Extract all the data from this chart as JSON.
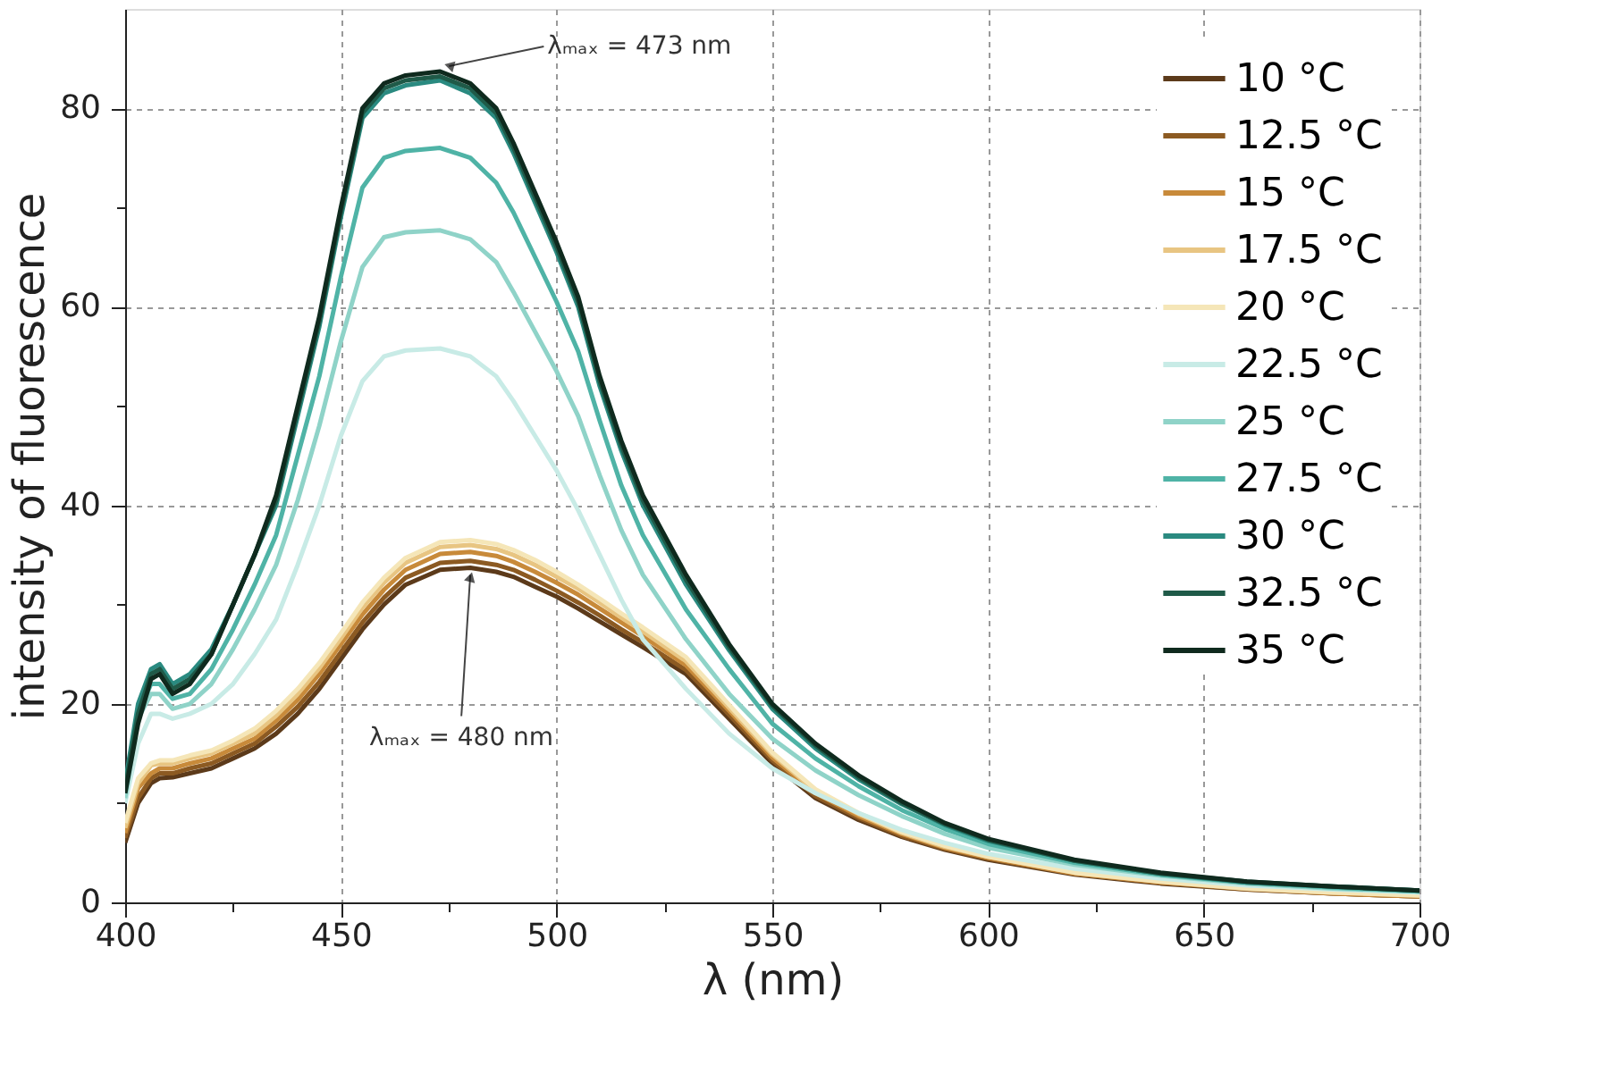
{
  "chart_data": {
    "type": "line",
    "xlabel": "λ (nm)",
    "ylabel": "intensity of fluorescence",
    "x": [
      400,
      403,
      406,
      408,
      411,
      415,
      420,
      425,
      430,
      435,
      440,
      445,
      450,
      455,
      460,
      465,
      473,
      480,
      486,
      490,
      495,
      500,
      505,
      510,
      515,
      520,
      530,
      540,
      550,
      560,
      570,
      580,
      590,
      600,
      620,
      640,
      660,
      680,
      700
    ],
    "xlim": [
      400,
      700
    ],
    "xticks": [
      400,
      {
        "value": 425,
        "label": null
      },
      450,
      {
        "value": 475,
        "label": null
      },
      500,
      {
        "value": 525,
        "label": null
      },
      550,
      {
        "value": 575,
        "label": null
      },
      600,
      {
        "value": 625,
        "label": null
      },
      650,
      {
        "value": 675,
        "label": null
      },
      700
    ],
    "ylim": [
      0,
      90
    ],
    "yticks": [
      0,
      {
        "value": 10,
        "label": null
      },
      20,
      {
        "value": 30,
        "label": null
      },
      40,
      {
        "value": 50,
        "label": null
      },
      60,
      {
        "value": 70,
        "label": null
      },
      80
    ],
    "grid": true,
    "legend": "top right",
    "line_style": "solid",
    "marker": "none",
    "annotations": [
      {
        "text": "λₘₐₓ = 473 nm",
        "x": 473,
        "y": 83.7
      },
      {
        "text": "λₘₐₓ = 480 nm",
        "x": 480,
        "y": 33.7
      }
    ],
    "series": [
      {
        "name": "10 °C",
        "color": "#5c3a1a",
        "values": [
          6,
          10,
          12,
          12.5,
          12.6,
          13,
          13.5,
          14.5,
          15.5,
          17,
          19,
          21.5,
          24.5,
          27.5,
          30,
          32,
          33.5,
          33.7,
          33.3,
          32.8,
          31.8,
          30.8,
          29.6,
          28.3,
          27,
          25.7,
          23,
          18.5,
          14,
          10.5,
          8.3,
          6.6,
          5.3,
          4.3,
          2.8,
          1.9,
          1.3,
          0.9,
          0.6
        ]
      },
      {
        "name": "12.5 °C",
        "color": "#8c5a22",
        "values": [
          6.5,
          10.5,
          12.5,
          13,
          13,
          13.5,
          14,
          15,
          16,
          17.7,
          19.7,
          22.2,
          25.2,
          28.2,
          30.7,
          32.7,
          34.2,
          34.4,
          34,
          33.5,
          32.5,
          31.4,
          30.2,
          28.9,
          27.5,
          26.2,
          23.4,
          18.9,
          14.3,
          10.7,
          8.5,
          6.7,
          5.4,
          4.4,
          2.9,
          2,
          1.3,
          0.9,
          0.6
        ]
      },
      {
        "name": "15 °C",
        "color": "#c88a3a",
        "values": [
          7,
          11.5,
          13,
          13.5,
          13.5,
          14,
          14.5,
          15.5,
          16.5,
          18.3,
          20.4,
          23,
          26,
          29,
          31.5,
          33.5,
          35.1,
          35.3,
          34.9,
          34.3,
          33.3,
          32.2,
          31,
          29.6,
          28.2,
          26.8,
          23.9,
          19.3,
          14.6,
          11,
          8.7,
          6.9,
          5.5,
          4.5,
          2.9,
          2,
          1.4,
          0.9,
          0.6
        ]
      },
      {
        "name": "17.5 °C",
        "color": "#e8c582",
        "values": [
          7.5,
          12,
          13.8,
          14,
          14,
          14.5,
          15,
          16,
          17,
          18.8,
          21,
          23.6,
          26.6,
          29.7,
          32.2,
          34.2,
          35.8,
          36,
          35.6,
          35,
          34,
          32.8,
          31.6,
          30.2,
          28.7,
          27.3,
          24.3,
          19.6,
          14.9,
          11.2,
          8.9,
          7,
          5.6,
          4.6,
          3,
          2.1,
          1.4,
          1,
          0.7
        ]
      },
      {
        "name": "20 °C",
        "color": "#f5e6b8",
        "values": [
          8,
          12.5,
          14,
          14.3,
          14.3,
          14.8,
          15.3,
          16.3,
          17.5,
          19.3,
          21.5,
          24.1,
          27.1,
          30.2,
          32.7,
          34.7,
          36.3,
          36.5,
          36.1,
          35.5,
          34.5,
          33.3,
          32,
          30.6,
          29.1,
          27.7,
          24.7,
          19.9,
          15.1,
          11.4,
          9,
          7.1,
          5.7,
          4.6,
          3,
          2.1,
          1.4,
          1,
          0.7
        ]
      },
      {
        "name": "22.5 °C",
        "color": "#c8ebe6",
        "values": [
          10,
          16,
          19,
          19,
          18.5,
          19,
          20,
          22,
          25,
          28.5,
          34,
          40,
          47,
          52.5,
          55,
          55.6,
          55.8,
          55,
          53,
          50.5,
          47,
          43.5,
          39.5,
          35,
          30.5,
          26.5,
          21.5,
          17,
          13.5,
          11,
          9,
          7.3,
          6,
          4.9,
          3.4,
          2.4,
          1.7,
          1.3,
          1
        ]
      },
      {
        "name": "25 °C",
        "color": "#8fd3c8",
        "values": [
          10.5,
          18.5,
          21,
          21,
          19.5,
          20,
          22,
          25.5,
          29.5,
          34,
          40.5,
          48,
          56.5,
          64,
          67,
          67.5,
          67.7,
          66.8,
          64.5,
          61.5,
          57.5,
          53.5,
          49,
          43,
          37.5,
          33,
          26.5,
          21,
          16.5,
          13.3,
          10.8,
          8.7,
          6.9,
          5.5,
          3.8,
          2.7,
          1.9,
          1.4,
          1.1
        ]
      },
      {
        "name": "27.5 °C",
        "color": "#4fb3a6",
        "values": [
          11,
          19,
          22,
          22,
          20.5,
          21,
          23.5,
          27.5,
          32,
          37,
          45,
          53,
          63,
          72,
          75,
          75.7,
          76,
          75,
          72.5,
          69.5,
          65,
          60.5,
          55.5,
          48.5,
          42,
          37,
          29.5,
          23.5,
          18,
          14.5,
          11.7,
          9.3,
          7.4,
          5.9,
          4,
          2.8,
          2,
          1.5,
          1.1
        ]
      },
      {
        "name": "30 °C",
        "color": "#2a8a80",
        "values": [
          12,
          20,
          23.5,
          24,
          22,
          23,
          25.5,
          30,
          35,
          40,
          49,
          58,
          69,
          79,
          81.5,
          82.3,
          82.8,
          81.5,
          79,
          75.5,
          70.5,
          65.5,
          60,
          52,
          45.5,
          40,
          32,
          25.4,
          19.5,
          15.5,
          12.4,
          9.9,
          7.8,
          6.2,
          4.2,
          2.9,
          2,
          1.6,
          1.2
        ]
      },
      {
        "name": "32.5 °C",
        "color": "#1f5a48",
        "values": [
          11.5,
          19,
          23,
          23.5,
          21.5,
          22.5,
          25,
          30,
          35,
          40.5,
          49.5,
          58.5,
          69.5,
          79.5,
          82,
          82.8,
          83.2,
          82,
          79.5,
          76,
          71,
          66,
          60.5,
          52.5,
          46,
          40.5,
          32.5,
          25.7,
          19.8,
          15.8,
          12.6,
          10,
          7.9,
          6.3,
          4.2,
          2.9,
          2.1,
          1.6,
          1.2
        ]
      },
      {
        "name": "35 °C",
        "color": "#0f2a1e",
        "values": [
          11,
          18,
          22.5,
          23,
          21,
          22,
          25,
          30,
          35,
          41,
          50,
          59,
          70,
          80,
          82.5,
          83.3,
          83.7,
          82.5,
          80,
          76.5,
          71.5,
          66.5,
          61,
          53,
          46.5,
          41,
          33,
          26,
          20,
          16,
          12.8,
          10.2,
          8,
          6.4,
          4.3,
          3,
          2.1,
          1.6,
          1.2
        ]
      }
    ]
  }
}
